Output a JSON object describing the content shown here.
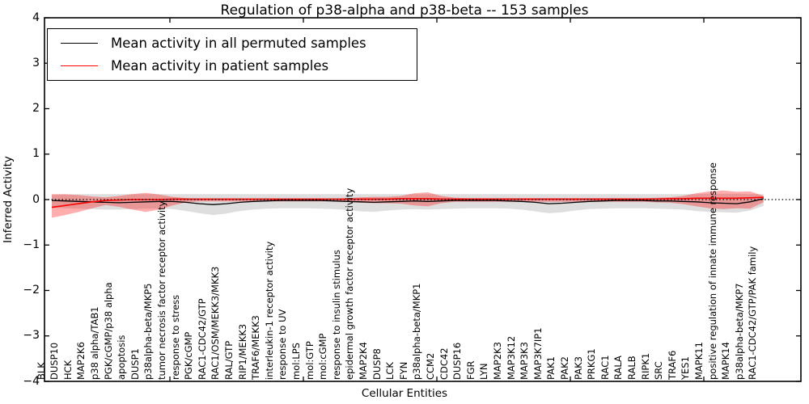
{
  "chart_data": {
    "type": "line",
    "title": "Regulation of p38-alpha and p38-beta -- 153 samples",
    "xlabel": "Cellular Entities",
    "ylabel": "Inferred Activity",
    "ylim": [
      -4,
      4
    ],
    "grid": false,
    "legend_position": "upper-left",
    "yticks": [
      {
        "label": "4",
        "value": 4
      },
      {
        "label": "3",
        "value": 3
      },
      {
        "label": "2",
        "value": 2
      },
      {
        "label": "1",
        "value": 1
      },
      {
        "label": "0",
        "value": 0
      },
      {
        "label": "−1",
        "value": -1
      },
      {
        "label": "−2",
        "value": -2
      },
      {
        "label": "−3",
        "value": -3
      },
      {
        "label": "−4",
        "value": -4
      }
    ],
    "legend": [
      {
        "label": "Mean activity in all permuted samples",
        "color": "#000000"
      },
      {
        "label": "Mean activity in patient samples",
        "color": "#ff0000"
      }
    ],
    "colors": {
      "permuted_line": "#000000",
      "patient_line": "#ff0000",
      "permuted_band": "rgba(0,0,0,0.13)",
      "patient_band": "rgba(255,0,0,0.32)",
      "zero_line": "#000000"
    },
    "categories": [
      "BLK",
      "DUSP10",
      "HCK",
      "MAP2K6",
      "p38 alpha/TAB1",
      "PGK/cGMP/p38 alpha",
      "apoptosis",
      "DUSP1",
      "p38alpha-beta/MKP5",
      "tumor necrosis factor receptor activity",
      "response to stress",
      "PGK/cGMP",
      "RAC1-CDC42/GTP",
      "RAC1/OSM/MEKK3/MKK3",
      "RAL/GTP",
      "RIP1/MEKK3",
      "TRAF6/MEKK3",
      "interleukin-1 receptor activity",
      "response to UV",
      "mol:LPS",
      "mol:GTP",
      "mol:cGMP",
      "response to insulin stimulus",
      "epidermal growth factor receptor activity",
      "MAP2K4",
      "DUSP8",
      "LCK",
      "FYN",
      "p38alpha-beta/MKP1",
      "CCM2",
      "CDC42",
      "DUSP16",
      "FGR",
      "LYN",
      "MAP2K3",
      "MAP3K12",
      "MAP3K3",
      "MAP3K7IP1",
      "PAK1",
      "PAK2",
      "PAK3",
      "PRKG1",
      "RAC1",
      "RALA",
      "RALB",
      "RIPK1",
      "SRC",
      "TRAF6",
      "YES1",
      "MAPK11",
      "positive regulation of innate immune response",
      "MAPK14",
      "p38alpha-beta/MKP7",
      "RAC1-CDC42/GTP/PAK family"
    ],
    "series": [
      {
        "name": "Mean activity in all permuted samples",
        "values": [
          -0.02,
          -0.03,
          -0.04,
          -0.05,
          -0.06,
          -0.07,
          -0.06,
          -0.05,
          -0.04,
          -0.04,
          -0.06,
          -0.09,
          -0.11,
          -0.09,
          -0.06,
          -0.04,
          -0.03,
          -0.02,
          -0.02,
          -0.02,
          -0.02,
          -0.03,
          -0.04,
          -0.05,
          -0.06,
          -0.05,
          -0.04,
          -0.03,
          -0.04,
          -0.03,
          -0.02,
          -0.02,
          -0.02,
          -0.02,
          -0.03,
          -0.04,
          -0.06,
          -0.09,
          -0.08,
          -0.06,
          -0.04,
          -0.03,
          -0.02,
          -0.02,
          -0.02,
          -0.03,
          -0.03,
          -0.04,
          -0.05,
          -0.07,
          -0.08,
          -0.09,
          -0.05,
          0.02
        ],
        "band_upper": [
          0.1,
          0.11,
          0.12,
          0.12,
          0.12,
          0.12,
          0.12,
          0.12,
          0.12,
          0.12,
          0.12,
          0.12,
          0.12,
          0.12,
          0.12,
          0.12,
          0.12,
          0.12,
          0.12,
          0.12,
          0.12,
          0.12,
          0.12,
          0.12,
          0.12,
          0.12,
          0.12,
          0.12,
          0.12,
          0.12,
          0.12,
          0.12,
          0.12,
          0.12,
          0.12,
          0.12,
          0.12,
          0.12,
          0.12,
          0.12,
          0.12,
          0.12,
          0.12,
          0.12,
          0.12,
          0.12,
          0.12,
          0.12,
          0.12,
          0.13,
          0.13,
          0.13,
          0.12,
          0.12
        ],
        "band_lower": [
          -0.18,
          -0.19,
          -0.2,
          -0.21,
          -0.22,
          -0.22,
          -0.21,
          -0.2,
          -0.2,
          -0.21,
          -0.25,
          -0.3,
          -0.34,
          -0.31,
          -0.25,
          -0.22,
          -0.2,
          -0.19,
          -0.19,
          -0.19,
          -0.2,
          -0.21,
          -0.23,
          -0.26,
          -0.27,
          -0.24,
          -0.22,
          -0.21,
          -0.22,
          -0.21,
          -0.2,
          -0.19,
          -0.19,
          -0.19,
          -0.2,
          -0.22,
          -0.26,
          -0.3,
          -0.28,
          -0.24,
          -0.21,
          -0.2,
          -0.19,
          -0.19,
          -0.19,
          -0.2,
          -0.21,
          -0.22,
          -0.25,
          -0.27,
          -0.28,
          -0.29,
          -0.24,
          -0.14
        ]
      },
      {
        "name": "Mean activity in patient samples",
        "values": [
          -0.17,
          -0.13,
          -0.09,
          -0.05,
          -0.02,
          -0.01,
          0.0,
          0.0,
          0.0,
          0.01,
          0.01,
          0.01,
          0.01,
          0.01,
          0.01,
          0.01,
          0.01,
          0.01,
          0.01,
          0.01,
          0.01,
          0.01,
          0.01,
          0.01,
          0.01,
          0.01,
          0.02,
          0.02,
          0.02,
          0.01,
          0.01,
          0.01,
          0.01,
          0.01,
          0.01,
          0.01,
          0.01,
          0.01,
          0.01,
          0.01,
          0.01,
          0.01,
          0.01,
          0.01,
          0.01,
          0.01,
          0.02,
          0.02,
          0.03,
          0.03,
          0.03,
          0.03,
          0.04,
          0.05
        ],
        "band_upper": [
          0.12,
          0.12,
          0.1,
          0.07,
          0.05,
          0.08,
          0.12,
          0.15,
          0.11,
          0.06,
          0.03,
          0.02,
          0.02,
          0.02,
          0.02,
          0.02,
          0.02,
          0.02,
          0.02,
          0.02,
          0.02,
          0.02,
          0.03,
          0.05,
          0.06,
          0.06,
          0.08,
          0.14,
          0.16,
          0.08,
          0.04,
          0.03,
          0.03,
          0.03,
          0.03,
          0.03,
          0.03,
          0.03,
          0.03,
          0.03,
          0.03,
          0.03,
          0.03,
          0.03,
          0.03,
          0.04,
          0.05,
          0.08,
          0.14,
          0.18,
          0.2,
          0.17,
          0.18,
          0.08
        ],
        "band_lower": [
          -0.4,
          -0.34,
          -0.27,
          -0.19,
          -0.12,
          -0.16,
          -0.22,
          -0.27,
          -0.22,
          -0.13,
          -0.06,
          -0.04,
          -0.04,
          -0.04,
          -0.04,
          -0.04,
          -0.04,
          -0.04,
          -0.04,
          -0.04,
          -0.04,
          -0.04,
          -0.05,
          -0.07,
          -0.08,
          -0.08,
          -0.09,
          -0.13,
          -0.15,
          -0.08,
          -0.05,
          -0.05,
          -0.05,
          -0.05,
          -0.05,
          -0.05,
          -0.05,
          -0.05,
          -0.05,
          -0.05,
          -0.05,
          -0.05,
          -0.05,
          -0.05,
          -0.05,
          -0.06,
          -0.07,
          -0.1,
          -0.15,
          -0.19,
          -0.21,
          -0.19,
          -0.2,
          -0.06
        ]
      }
    ]
  }
}
